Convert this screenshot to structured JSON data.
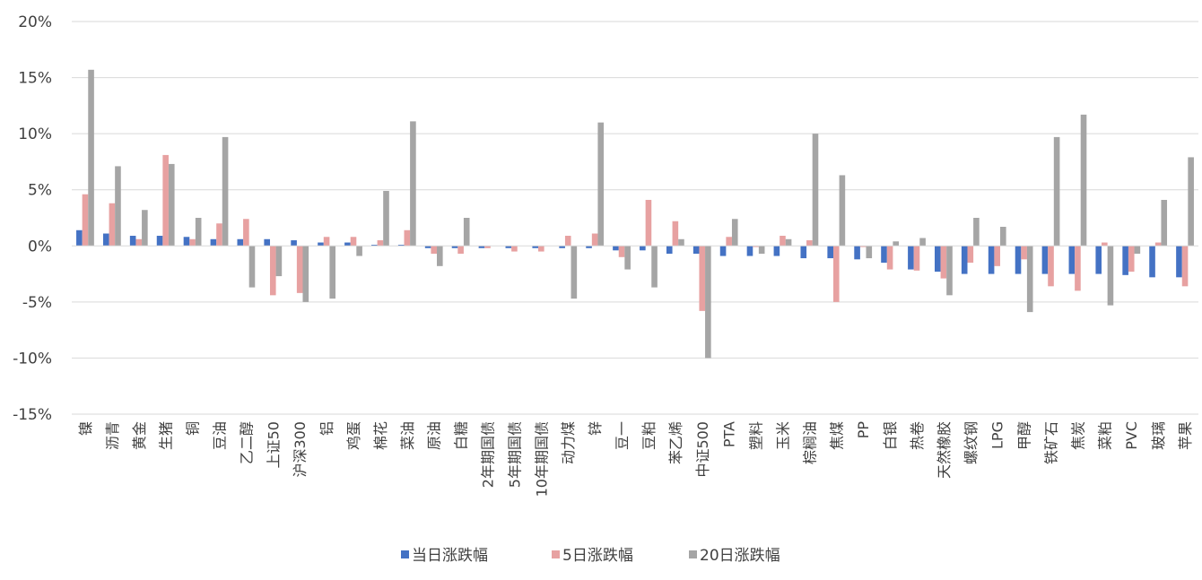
{
  "chart_data": {
    "type": "bar",
    "title": "",
    "xlabel": "",
    "ylabel": "",
    "ylim": [
      -15,
      20
    ],
    "yticks": [
      -15,
      -10,
      -5,
      0,
      5,
      10,
      15,
      20
    ],
    "ytick_labels": [
      "-15%",
      "-10%",
      "-5%",
      "0%",
      "5%",
      "10%",
      "15%",
      "20%"
    ],
    "grid": true,
    "legend_position": "bottom",
    "categories": [
      "镍",
      "沥青",
      "黄金",
      "生猪",
      "铜",
      "豆油",
      "乙二醇",
      "上证50",
      "沪深300",
      "铝",
      "鸡蛋",
      "棉花",
      "菜油",
      "原油",
      "白糖",
      "2年期国债",
      "5年期国债",
      "10年期国债",
      "动力煤",
      "锌",
      "豆一",
      "豆粕",
      "苯乙烯",
      "中证500",
      "PTA",
      "塑料",
      "玉米",
      "棕榈油",
      "焦煤",
      "PP",
      "白银",
      "热卷",
      "天然橡胶",
      "螺纹钢",
      "LPG",
      "甲醇",
      "铁矿石",
      "焦炭",
      "菜粕",
      "PVC",
      "玻璃",
      "苹果"
    ],
    "series": [
      {
        "name": "当日涨跌幅",
        "color": "#4472c4",
        "values": [
          1.4,
          1.1,
          0.9,
          0.9,
          0.8,
          0.6,
          0.6,
          0.6,
          0.5,
          0.3,
          0.3,
          0.1,
          0.1,
          -0.2,
          -0.2,
          -0.2,
          -0.2,
          -0.2,
          -0.2,
          -0.2,
          -0.4,
          -0.4,
          -0.7,
          -0.7,
          -0.9,
          -0.9,
          -0.9,
          -1.1,
          -1.1,
          -1.2,
          -1.5,
          -2.1,
          -2.3,
          -2.5,
          -2.5,
          -2.5,
          -2.5,
          -2.5,
          -2.5,
          -2.6,
          -2.8,
          -2.8
        ]
      },
      {
        "name": "5日涨跌幅",
        "color": "#e7a1a1",
        "values": [
          4.6,
          3.8,
          0.6,
          8.1,
          0.6,
          2.0,
          2.4,
          -4.4,
          -4.2,
          0.8,
          0.8,
          0.5,
          1.4,
          -0.7,
          -0.7,
          -0.2,
          -0.5,
          -0.5,
          0.9,
          1.1,
          -1.0,
          4.1,
          2.2,
          -5.8,
          0.8,
          -0.1,
          0.9,
          0.5,
          -5.0,
          -0.1,
          -2.1,
          -2.2,
          -2.9,
          -1.5,
          -1.8,
          -1.2,
          -3.6,
          -4.0,
          0.3,
          -2.3,
          0.3,
          -3.6
        ]
      },
      {
        "name": "20日涨跌幅",
        "color": "#a5a5a5",
        "values": [
          15.7,
          7.1,
          3.2,
          7.3,
          2.5,
          9.7,
          -3.7,
          -2.7,
          -5.0,
          -4.7,
          -0.9,
          4.9,
          11.1,
          -1.8,
          2.5,
          0.0,
          0.0,
          0.0,
          -4.7,
          11.0,
          -2.1,
          -3.7,
          0.6,
          -10.0,
          2.4,
          -0.7,
          0.6,
          10.0,
          6.3,
          -1.1,
          0.4,
          0.7,
          -4.4,
          2.5,
          1.7,
          -5.9,
          9.7,
          11.7,
          -5.3,
          -0.7,
          4.1,
          7.9
        ]
      }
    ]
  }
}
